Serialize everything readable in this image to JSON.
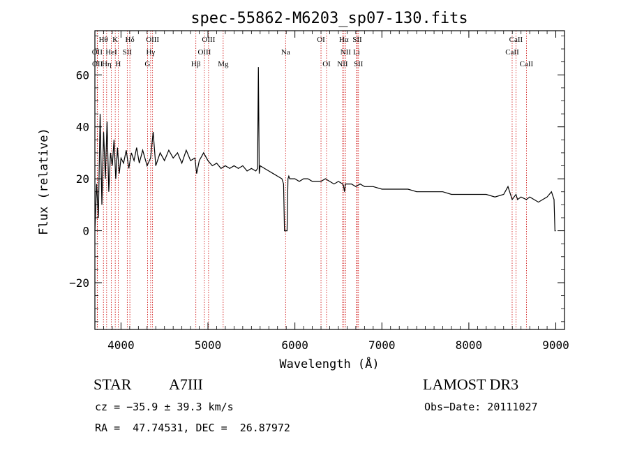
{
  "chart_data": {
    "type": "line",
    "title": "spec-55862-M6203_sp07-130.fits",
    "xlabel": "Wavelength (Å)",
    "ylabel": "Flux (relative)",
    "xlim": [
      3700,
      9100
    ],
    "ylim": [
      -38,
      77
    ],
    "xticks": [
      4000,
      5000,
      6000,
      7000,
      8000,
      9000
    ],
    "xtick_labels": [
      "4000",
      "5000",
      "6000",
      "7000",
      "8000",
      "9000"
    ],
    "yticks": [
      -20,
      0,
      20,
      40,
      60
    ],
    "ytick_labels": [
      "−20",
      "0",
      "20",
      "40",
      "60"
    ],
    "series": [
      {
        "name": "spectrum",
        "x": [
          3700,
          3720,
          3740,
          3760,
          3780,
          3800,
          3820,
          3840,
          3860,
          3880,
          3900,
          3920,
          3940,
          3960,
          3980,
          4000,
          4030,
          4060,
          4090,
          4120,
          4150,
          4180,
          4210,
          4250,
          4300,
          4340,
          4370,
          4400,
          4450,
          4500,
          4550,
          4600,
          4650,
          4700,
          4750,
          4800,
          4850,
          4870,
          4900,
          4950,
          5000,
          5050,
          5100,
          5150,
          5200,
          5250,
          5300,
          5350,
          5400,
          5450,
          5500,
          5550,
          5570,
          5580,
          5590,
          5600,
          5650,
          5700,
          5750,
          5800,
          5850,
          5870,
          5880,
          5890,
          5900,
          5910,
          5920,
          5930,
          5940,
          6000,
          6050,
          6100,
          6150,
          6200,
          6250,
          6300,
          6350,
          6400,
          6450,
          6500,
          6550,
          6560,
          6570,
          6580,
          6600,
          6650,
          6700,
          6750,
          6800,
          6850,
          6900,
          7000,
          7100,
          7200,
          7300,
          7400,
          7500,
          7600,
          7700,
          7800,
          7900,
          8000,
          8100,
          8200,
          8300,
          8400,
          8450,
          8498,
          8520,
          8542,
          8560,
          8600,
          8662,
          8700,
          8750,
          8800,
          8850,
          8900,
          8950,
          8980,
          8990,
          9000
        ],
        "y": [
          0,
          18,
          5,
          45,
          10,
          38,
          20,
          42,
          15,
          30,
          25,
          35,
          20,
          32,
          22,
          28,
          26,
          31,
          24,
          30,
          27,
          32,
          26,
          31,
          25,
          28,
          38,
          25,
          30,
          27,
          31,
          28,
          30,
          26,
          31,
          27,
          28,
          22,
          27,
          30,
          27,
          25,
          26,
          24,
          25,
          24,
          25,
          24,
          25,
          23,
          24,
          23,
          24,
          63,
          22,
          25,
          24,
          23,
          22,
          21,
          20,
          18,
          0,
          0,
          0,
          0,
          20,
          21,
          20,
          20,
          19,
          20,
          20,
          19,
          19,
          19,
          20,
          19,
          18,
          19,
          18,
          17,
          15,
          18,
          18,
          18,
          17,
          18,
          17,
          17,
          17,
          16,
          16,
          16,
          16,
          15,
          15,
          15,
          15,
          14,
          14,
          14,
          14,
          14,
          13,
          14,
          17,
          12,
          13,
          14,
          12,
          13,
          12,
          13,
          12,
          11,
          12,
          13,
          15,
          12,
          0,
          0
        ]
      }
    ],
    "lines": [
      {
        "name": "Hθ",
        "wave": 3798,
        "row": 0
      },
      {
        "name": "K",
        "wave": 3934,
        "row": 0
      },
      {
        "name": "Hδ",
        "wave": 4102,
        "row": 0
      },
      {
        "name": "OIII",
        "wave": 4363,
        "row": 0
      },
      {
        "name": "OIII",
        "wave": 5007,
        "row": 0
      },
      {
        "name": "OI",
        "wave": 6300,
        "row": 0
      },
      {
        "name": "Hα",
        "wave": 6563,
        "row": 0
      },
      {
        "name": "SII",
        "wave": 6717,
        "row": 0
      },
      {
        "name": "CaII",
        "wave": 8542,
        "row": 0
      },
      {
        "name": "OII",
        "wave": 3727,
        "row": 1
      },
      {
        "name": "HeI",
        "wave": 3889,
        "row": 1
      },
      {
        "name": "SII",
        "wave": 4072,
        "row": 1
      },
      {
        "name": "Hγ",
        "wave": 4341,
        "row": 1
      },
      {
        "name": "OIII",
        "wave": 4959,
        "row": 1
      },
      {
        "name": "Na",
        "wave": 5893,
        "row": 1
      },
      {
        "name": "NII",
        "wave": 6583,
        "row": 1
      },
      {
        "name": "Li",
        "wave": 6708,
        "row": 1
      },
      {
        "name": "CaII",
        "wave": 8498,
        "row": 1
      },
      {
        "name": "OII",
        "wave": 3729,
        "row": 2
      },
      {
        "name": "Hη",
        "wave": 3835,
        "row": 2
      },
      {
        "name": "H",
        "wave": 3968,
        "row": 2
      },
      {
        "name": "G",
        "wave": 4305,
        "row": 2
      },
      {
        "name": "Hβ",
        "wave": 4861,
        "row": 2
      },
      {
        "name": "Mg",
        "wave": 5175,
        "row": 2
      },
      {
        "name": "OI",
        "wave": 6364,
        "row": 2
      },
      {
        "name": "NII",
        "wave": 6548,
        "row": 2
      },
      {
        "name": "SII",
        "wave": 6731,
        "row": 2
      },
      {
        "name": "CaII",
        "wave": 8662,
        "row": 2
      }
    ]
  },
  "info": {
    "object_class": "STAR",
    "subclass": "A7III",
    "survey": "LAMOST DR3",
    "redshift": "cz = −35.9 ± 39.3 km/s",
    "obs_date": "Obs−Date: 20111027",
    "coords": "RA =  47.74531, DEC =  26.87972"
  },
  "colors": {
    "axis": "#000000",
    "spectrum": "#000000",
    "line_marker": "#cc0000"
  }
}
